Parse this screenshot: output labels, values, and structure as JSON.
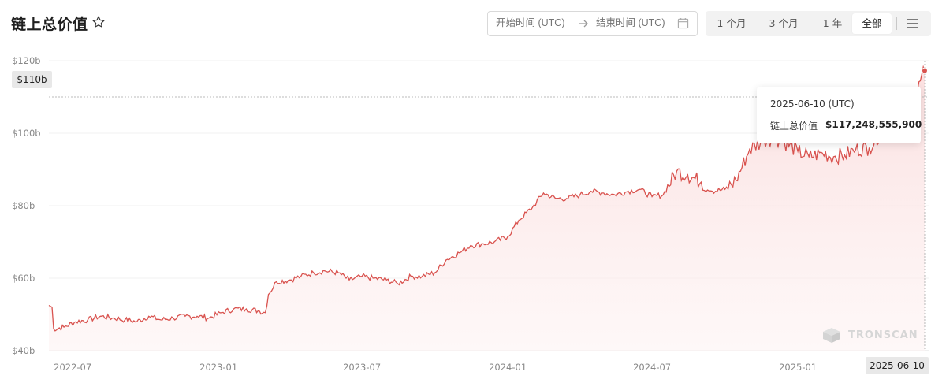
{
  "header": {
    "title": "链上总价值",
    "date_range": {
      "start_placeholder": "开始时间 (UTC)",
      "end_placeholder": "结束时间 (UTC)"
    },
    "ranges": [
      {
        "label": "1 个月",
        "active": false
      },
      {
        "label": "3 个月",
        "active": false
      },
      {
        "label": "1 年",
        "active": false
      },
      {
        "label": "全部",
        "active": true
      }
    ]
  },
  "tooltip": {
    "date": "2025-06-10 (UTC)",
    "label": "链上总价值",
    "value": "$117,248,555,900"
  },
  "crosshair": {
    "y_label": "$110b",
    "x_label": "2025-06-10"
  },
  "watermark": "TRONSCAN",
  "colors": {
    "line": "#d9534f",
    "fill": "#fbeaea",
    "grid": "#f0f0f0",
    "axis_text": "#888888"
  },
  "chart_data": {
    "type": "area",
    "title": "链上总价值",
    "xlabel": "",
    "ylabel": "",
    "ylim": [
      40,
      120
    ],
    "y_unit": "b",
    "y_ticks": [
      {
        "value": 40,
        "label": "$40b"
      },
      {
        "value": 60,
        "label": "$60b"
      },
      {
        "value": 80,
        "label": "$80b"
      },
      {
        "value": 100,
        "label": "$100b"
      },
      {
        "value": 120,
        "label": "$120b"
      }
    ],
    "xlim": [
      "2022-06-01",
      "2025-06-15"
    ],
    "x_ticks": [
      "2022-07",
      "2023-01",
      "2023-07",
      "2024-01",
      "2024-07",
      "2025-01"
    ],
    "grid": "horizontal",
    "series": [
      {
        "x": [
          "2022-06-01",
          "2022-06-05",
          "2022-06-07",
          "2022-06-20",
          "2022-07-05",
          "2022-07-20",
          "2022-08-05",
          "2022-08-20",
          "2022-09-05",
          "2022-09-20",
          "2022-10-05",
          "2022-10-20",
          "2022-11-05",
          "2022-11-20",
          "2022-12-05",
          "2022-12-20",
          "2023-01-05",
          "2023-01-20",
          "2023-02-05",
          "2023-02-20",
          "2023-03-01",
          "2023-03-05",
          "2023-03-15",
          "2023-04-01",
          "2023-04-15",
          "2023-05-01",
          "2023-05-15",
          "2023-06-01",
          "2023-06-15",
          "2023-07-01",
          "2023-07-15",
          "2023-08-01",
          "2023-08-15",
          "2023-09-01",
          "2023-09-15",
          "2023-10-01",
          "2023-10-15",
          "2023-11-01",
          "2023-11-15",
          "2023-12-01",
          "2023-12-15",
          "2024-01-01",
          "2024-01-15",
          "2024-02-01",
          "2024-02-15",
          "2024-03-01",
          "2024-03-15",
          "2024-04-01",
          "2024-04-15",
          "2024-05-01",
          "2024-05-15",
          "2024-06-01",
          "2024-06-15",
          "2024-07-01",
          "2024-07-15",
          "2024-08-01",
          "2024-08-15",
          "2024-09-01",
          "2024-09-15",
          "2024-10-01",
          "2024-10-15",
          "2024-11-01",
          "2024-11-15",
          "2024-12-01",
          "2024-12-15",
          "2025-01-01",
          "2025-01-15",
          "2025-02-01",
          "2025-02-15",
          "2025-03-01",
          "2025-03-15",
          "2025-04-01",
          "2025-04-15",
          "2025-05-01",
          "2025-05-15",
          "2025-06-01",
          "2025-06-10"
        ],
        "values": [
          52.5,
          52,
          46,
          46.5,
          48,
          48.5,
          49.5,
          49,
          48.5,
          48,
          49.5,
          48.5,
          49,
          49.5,
          49.5,
          49,
          50.5,
          51.5,
          51.5,
          51,
          50.5,
          55.5,
          59,
          59.5,
          60.5,
          61.5,
          62,
          61.5,
          59.5,
          60.5,
          60,
          59.5,
          58.5,
          60.5,
          60.5,
          61.5,
          65,
          67,
          69,
          69.5,
          70,
          71.5,
          76,
          79.5,
          83.5,
          82,
          82,
          83,
          84,
          83.5,
          83,
          84,
          84.5,
          82.5,
          83,
          89.5,
          88.5,
          86.5,
          84,
          84.5,
          87,
          95.5,
          97.5,
          99,
          97.5,
          95,
          93.5,
          94.5,
          93.5,
          94,
          95.5,
          96,
          100,
          102,
          106,
          112,
          117.25
        ]
      }
    ]
  }
}
